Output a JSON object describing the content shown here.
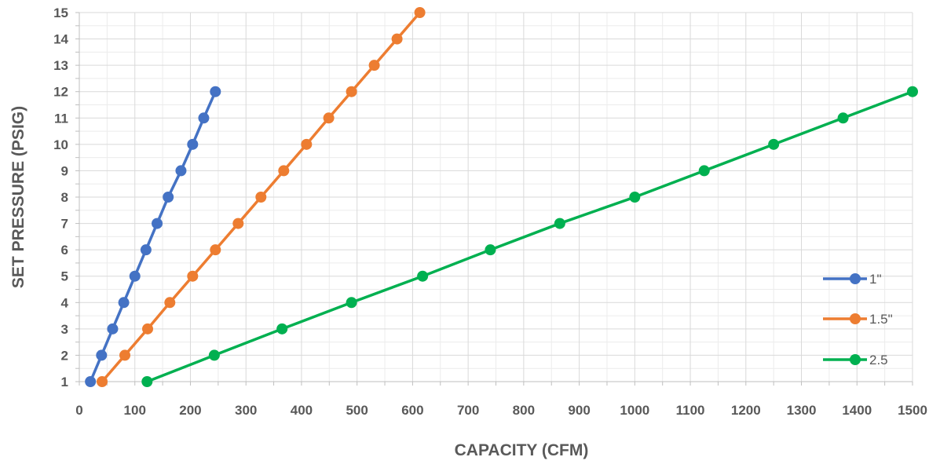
{
  "chart_data": {
    "type": "line",
    "xlabel": "CAPACITY  (CFM)",
    "ylabel": "SET PRESSURE  (PSIG)",
    "xlim": [
      0,
      1500
    ],
    "ylim": [
      1,
      15
    ],
    "xticks": [
      0,
      100,
      200,
      300,
      400,
      500,
      600,
      700,
      800,
      900,
      1000,
      1100,
      1200,
      1300,
      1400,
      1500
    ],
    "yticks": [
      1,
      2,
      3,
      4,
      5,
      6,
      7,
      8,
      9,
      10,
      11,
      12,
      13,
      14,
      15
    ],
    "grid": true,
    "legend_position": "right",
    "series": [
      {
        "name": "1\"",
        "color": "#4472C4",
        "x": [
          20,
          40,
          60,
          80,
          100,
          120,
          140,
          160,
          183,
          204,
          224,
          245
        ],
        "y": [
          1,
          2,
          3,
          4,
          5,
          6,
          7,
          8,
          9,
          10,
          11,
          12
        ]
      },
      {
        "name": "1.5\"",
        "color": "#ED7D31",
        "x": [
          41,
          82,
          123,
          163,
          204,
          245,
          286,
          327,
          368,
          409,
          449,
          490,
          531,
          572,
          613
        ],
        "y": [
          1,
          2,
          3,
          4,
          5,
          6,
          7,
          8,
          9,
          10,
          11,
          12,
          13,
          14,
          15
        ]
      },
      {
        "name": "2.5",
        "color": "#00B050",
        "x": [
          122,
          243,
          365,
          490,
          618,
          740,
          865,
          1000,
          1125,
          1250,
          1375,
          1500
        ],
        "y": [
          1,
          2,
          3,
          4,
          5,
          6,
          7,
          8,
          9,
          10,
          11,
          12
        ]
      }
    ]
  }
}
